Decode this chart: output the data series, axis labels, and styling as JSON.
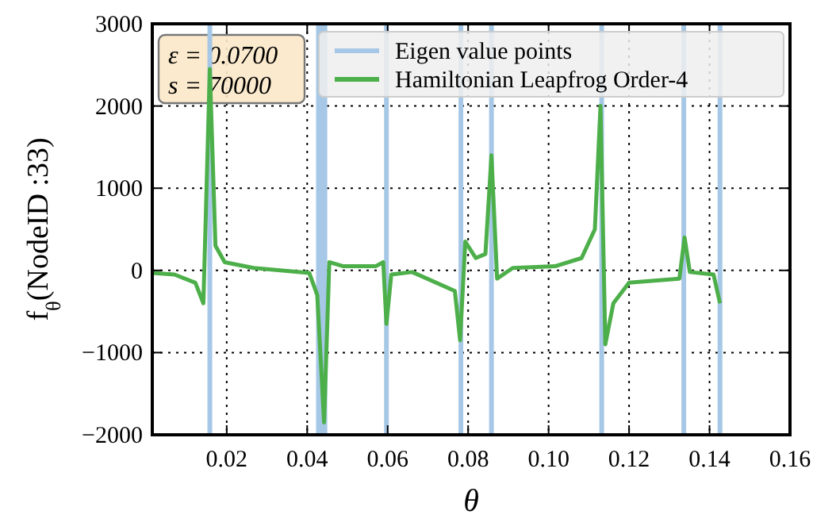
{
  "chart_data": {
    "type": "line",
    "xlabel": "θ",
    "ylabel": "f$_{θ}$(NodeID :33)",
    "annotations": [
      "ε = 0.0700",
      "s = 70000"
    ],
    "xlim": [
      0.0015,
      0.16
    ],
    "ylim": [
      -2000,
      3000
    ],
    "xticks": [
      {
        "value": 0.02,
        "label": "0.02"
      },
      {
        "value": 0.04,
        "label": "0.04"
      },
      {
        "value": 0.06,
        "label": "0.06"
      },
      {
        "value": 0.08,
        "label": "0.08"
      },
      {
        "value": 0.1,
        "label": "0.10"
      },
      {
        "value": 0.12,
        "label": "0.12"
      },
      {
        "value": 0.14,
        "label": "0.14"
      },
      {
        "value": 0.16,
        "label": "0.16"
      }
    ],
    "yticks": [
      -2000,
      -1000,
      0,
      1000,
      2000,
      3000
    ],
    "grid": true,
    "legend": "top right",
    "line_style": "solid",
    "marker": "none",
    "series": [
      {
        "name": "Eigen value points",
        "color": "#a6c8e6",
        "x": [
          0.0158,
          0.0158,
          null,
          0.0428,
          0.0428,
          null,
          0.0436,
          0.0436,
          null,
          0.0444,
          0.0444,
          null,
          0.0597,
          0.0597,
          null,
          0.0782,
          0.0782,
          null,
          0.0858,
          0.0858,
          null,
          0.1132,
          0.1132,
          null,
          0.1336,
          0.1336,
          null,
          0.1426,
          0.1426
        ],
        "values": [
          -2000,
          3000,
          null,
          -2000,
          3000,
          null,
          -2000,
          3000,
          null,
          -2000,
          3000,
          null,
          -2000,
          3000,
          null,
          -2000,
          3000,
          null,
          -2000,
          3000,
          null,
          -2000,
          3000,
          null,
          -2000,
          3000,
          null,
          -2000,
          3000
        ]
      },
      {
        "name": "Hamiltonian Leapfrog Order-4",
        "color": "#4daf4a",
        "x": [
          0.0015,
          0.007,
          0.0122,
          0.0142,
          0.0158,
          0.0172,
          0.0195,
          0.0267,
          0.0405,
          0.0425,
          0.0442,
          0.0455,
          0.049,
          0.057,
          0.0589,
          0.0597,
          0.0609,
          0.0661,
          0.0767,
          0.078,
          0.0793,
          0.0819,
          0.0843,
          0.0858,
          0.0872,
          0.0911,
          0.1016,
          0.1082,
          0.1115,
          0.1129,
          0.1141,
          0.1161,
          0.12,
          0.1325,
          0.1338,
          0.1351,
          0.141,
          0.1426
        ],
        "values": [
          -30,
          -50,
          -150,
          -400,
          2450,
          300,
          100,
          30,
          -30,
          -300,
          -1850,
          100,
          50,
          50,
          100,
          -650,
          -50,
          -20,
          -250,
          -850,
          350,
          150,
          200,
          1400,
          -100,
          30,
          50,
          150,
          500,
          2000,
          -900,
          -400,
          -150,
          -100,
          400,
          -20,
          -50,
          -400
        ]
      }
    ]
  }
}
